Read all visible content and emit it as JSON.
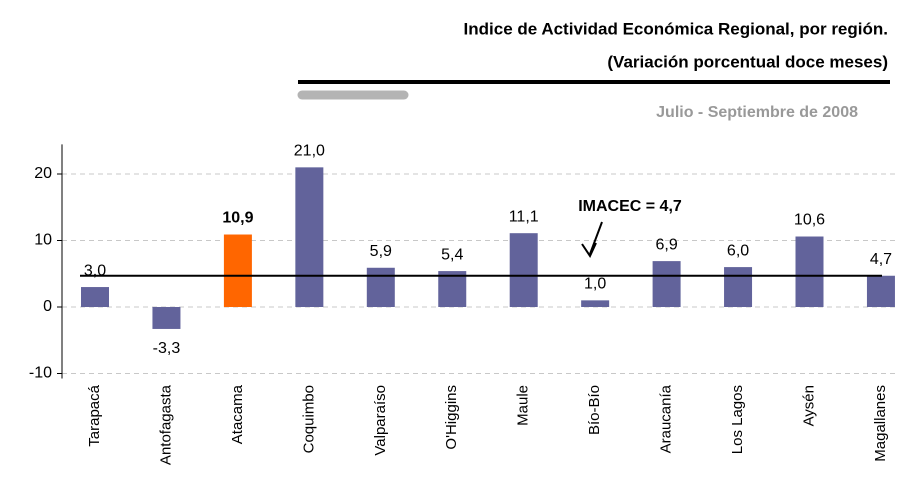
{
  "chart_data": {
    "type": "bar",
    "title": "Indice de Actividad Económica Regional, por región.",
    "subtitle": "(Variación porcentual doce meses)",
    "period": "Julio - Septiembre de 2008",
    "categories": [
      "Tarapacá",
      "Antofagasta",
      "Atacama",
      "Coquimbo",
      "Valparaíso",
      "O'Higgins",
      "Maule",
      "Bío-Bío",
      "Araucanía",
      "Los Lagos",
      "Aysén",
      "Magallanes"
    ],
    "values": [
      3.0,
      -3.3,
      10.9,
      21.0,
      5.9,
      5.4,
      11.1,
      1.0,
      6.9,
      6.0,
      10.6,
      4.7
    ],
    "value_labels": [
      "3,0",
      "-3,3",
      "10,9",
      "21,0",
      "5,9",
      "5,4",
      "11,1",
      "1,0",
      "6,9",
      "6,0",
      "10,6",
      "4,7"
    ],
    "colors": [
      "#62639b",
      "#62639b",
      "#ff6600",
      "#62639b",
      "#62639b",
      "#62639b",
      "#62639b",
      "#62639b",
      "#62639b",
      "#62639b",
      "#62639b",
      "#62639b"
    ],
    "ylim": [
      -10,
      24
    ],
    "yticks": [
      -10,
      0,
      10,
      20
    ],
    "grid": true,
    "reference_line": {
      "value": 4.7,
      "label": "IMACEC = 4,7"
    }
  }
}
